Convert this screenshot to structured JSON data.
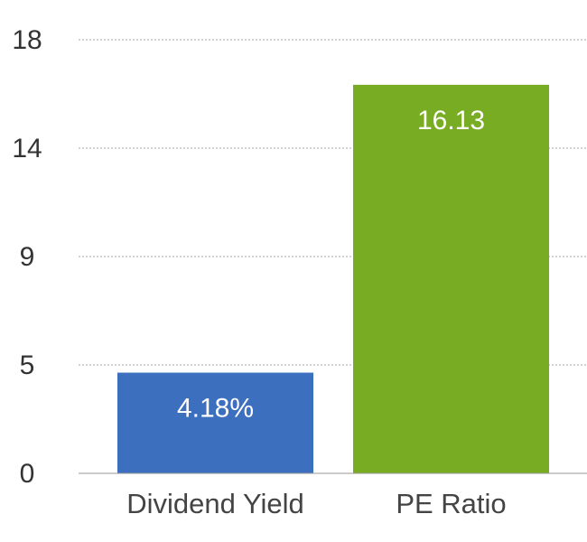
{
  "chart_data": {
    "type": "bar",
    "categories": [
      "Dividend Yield",
      "PE Ratio"
    ],
    "values": [
      4.18,
      16.13
    ],
    "value_labels": [
      "4.18%",
      "16.13"
    ],
    "colors": [
      "#3d6fbf",
      "#78ac22"
    ],
    "ylim": [
      0,
      18
    ],
    "yticks": [
      0,
      {
        "value": 4.5,
        "label": "5"
      },
      9,
      {
        "value": 13.5,
        "label": "14"
      },
      18
    ],
    "grid": true
  }
}
